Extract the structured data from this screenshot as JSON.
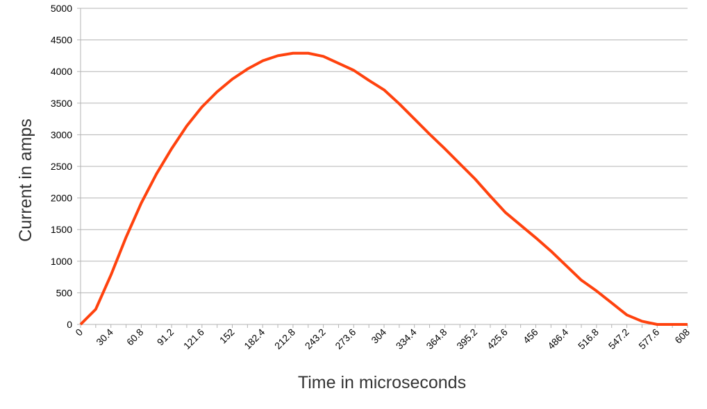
{
  "chart_data": {
    "type": "line",
    "x_label": "Time in microseconds",
    "y_label": "Current in amps",
    "categories": [
      "0",
      null,
      "30.4",
      null,
      "60.8",
      null,
      "91.2",
      null,
      "121.6",
      null,
      "152",
      null,
      "182.4",
      null,
      "212.8",
      null,
      "243.2",
      null,
      "273.6",
      null,
      "304",
      null,
      "334.4",
      null,
      "364.8",
      null,
      "395.2",
      null,
      "425.6",
      null,
      "456",
      null,
      "486.4",
      null,
      "516.8",
      null,
      "547.2",
      null,
      "577.6",
      null,
      "608"
    ],
    "series": [
      {
        "name": "Current",
        "color": "#ff420e",
        "values": [
          0,
          240,
          780,
          1380,
          1920,
          2380,
          2780,
          3140,
          3440,
          3680,
          3880,
          4040,
          4170,
          4250,
          4290,
          4290,
          4240,
          4130,
          4020,
          3860,
          3710,
          3490,
          3250,
          3010,
          2780,
          2540,
          2300,
          2030,
          1770,
          1570,
          1370,
          1160,
          930,
          700,
          530,
          340,
          150,
          50,
          0,
          0,
          0
        ]
      }
    ],
    "ylim": [
      0,
      5000
    ],
    "yticks": [
      0,
      500,
      1000,
      1500,
      2000,
      2500,
      3000,
      3500,
      4000,
      4500,
      5000
    ],
    "grid": true
  }
}
